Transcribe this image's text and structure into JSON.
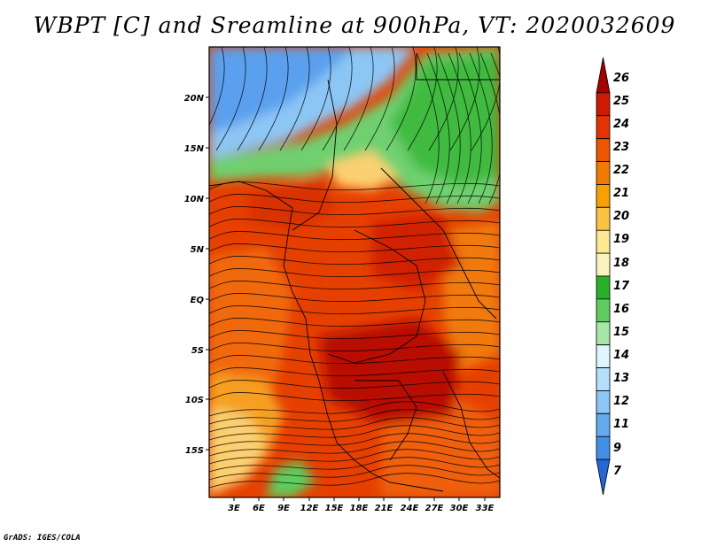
{
  "title": "WBPT [C] and Sreamline at 900hPa, VT: 2020032609",
  "map": {
    "lat_labels": [
      "20N",
      "15N",
      "10N",
      "5N",
      "EQ",
      "5S",
      "10S",
      "15S"
    ],
    "lon_labels": [
      "3E",
      "6E",
      "9E",
      "12E",
      "15E",
      "18E",
      "21E",
      "24E",
      "27E",
      "30E",
      "33E"
    ]
  },
  "colorbar": {
    "labels": [
      "26",
      "25",
      "24",
      "23",
      "22",
      "21",
      "20",
      "19",
      "18",
      "17",
      "16",
      "15",
      "14",
      "13",
      "12",
      "11",
      "9",
      "7"
    ],
    "colors": [
      "#a50000",
      "#cd1a00",
      "#e43200",
      "#ee5500",
      "#f37a00",
      "#f7a000",
      "#fbc440",
      "#fde98f",
      "#fbf3bd",
      "#28b028",
      "#5fcc5f",
      "#a6e6a6",
      "#e0f6ff",
      "#b4e0fa",
      "#8cc6f4",
      "#64aaee",
      "#4290e6",
      "#2266d8"
    ]
  },
  "footer": "GrADS: IGES/COLA"
}
